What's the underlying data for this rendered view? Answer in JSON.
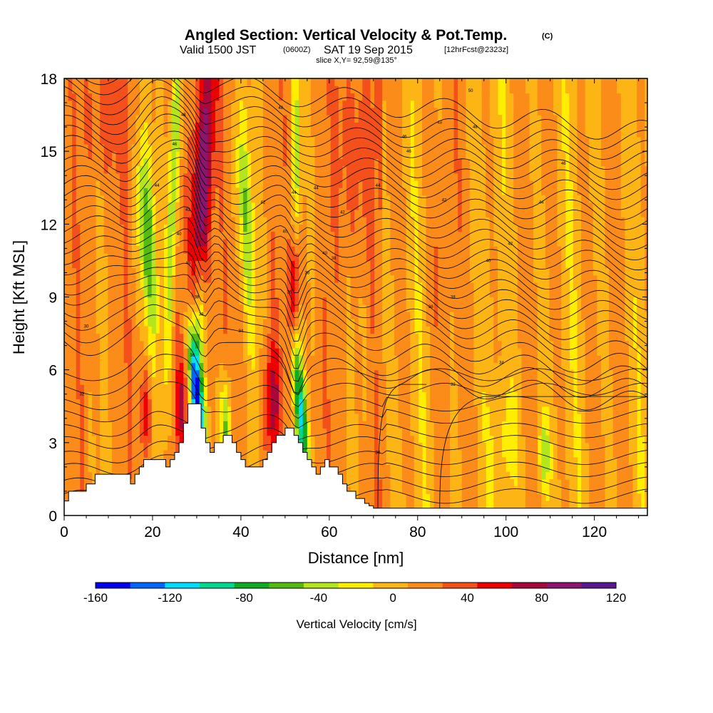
{
  "title": {
    "main": "Angled Section: Vertical Velocity & Pot.Temp.",
    "main_suffix": "(C)",
    "valid_prefix": "Valid 1500 JST",
    "valid_utc": "(0600Z)",
    "valid_date": "SAT 19 Sep 2015",
    "forecast": "[12hrFcst@2323z]",
    "slice": "slice X,Y= 92,59@135°"
  },
  "chart_data": {
    "type": "heatmap",
    "xlabel": "Distance [nm]",
    "ylabel": "Height [Kft MSL]",
    "xlim": [
      0,
      132
    ],
    "ylim": [
      0,
      18
    ],
    "x_ticks": [
      0,
      20,
      40,
      60,
      80,
      100,
      120
    ],
    "y_ticks": [
      0,
      3,
      6,
      9,
      12,
      15,
      18
    ],
    "colorbar": {
      "title": "Vertical Velocity [cm/s]",
      "tick_labels": [
        "-160",
        "-120",
        "-80",
        "-40",
        "0",
        "40",
        "80",
        "120"
      ],
      "tick_values": [
        -160,
        -120,
        -80,
        -40,
        0,
        40,
        80,
        120
      ],
      "range": [
        -160,
        120
      ],
      "colors": [
        "#0000ee",
        "#0066ff",
        "#00ddff",
        "#00d890",
        "#11aa22",
        "#55bb11",
        "#b5e61d",
        "#ffee00",
        "#fdb515",
        "#fb8c1a",
        "#f4501c",
        "#ee0000",
        "#a8083a",
        "#8a1670",
        "#5a1890"
      ]
    },
    "terrain_profile": {
      "x_nm": [
        0,
        1,
        2,
        5,
        6,
        7,
        9,
        10,
        15,
        16,
        17,
        18,
        19,
        20,
        22,
        23,
        24,
        25,
        26,
        27,
        28,
        29,
        30,
        31,
        32,
        33,
        34,
        35,
        36,
        37,
        38,
        39,
        40,
        41,
        42,
        43,
        44,
        45,
        46,
        47,
        48,
        49,
        50,
        51,
        52,
        53,
        54,
        55,
        56,
        57,
        58,
        59,
        60,
        62,
        63,
        64,
        65,
        66,
        67,
        68,
        69,
        70,
        71,
        72,
        132
      ],
      "height_kft": [
        0.6,
        1.0,
        1.0,
        1.3,
        1.3,
        1.7,
        1.7,
        1.7,
        1.3,
        1.7,
        2.0,
        2.3,
        2.3,
        2.3,
        2.3,
        2.0,
        2.3,
        2.6,
        3.0,
        3.8,
        4.6,
        4.6,
        4.6,
        3.6,
        3.0,
        2.6,
        3.0,
        3.0,
        3.3,
        3.3,
        3.0,
        2.6,
        2.3,
        2.0,
        2.0,
        2.0,
        2.0,
        2.3,
        2.6,
        3.0,
        3.3,
        3.3,
        3.6,
        3.6,
        3.3,
        3.0,
        2.6,
        2.3,
        2.0,
        1.7,
        2.0,
        2.3,
        2.0,
        1.7,
        1.3,
        1.0,
        1.0,
        0.7,
        0.7,
        0.5,
        0.4,
        0.3,
        0.3,
        0.3,
        0.3
      ]
    },
    "theta_contours": {
      "units": "C",
      "base_heights_kft": [
        0.8,
        1.3,
        1.9,
        2.4,
        3.0,
        3.5,
        4.1,
        4.6,
        5.2,
        5.8,
        6.4,
        6.9,
        7.4,
        7.9,
        8.4,
        8.8,
        9.2,
        9.6,
        10.0,
        10.4,
        10.8,
        11.2,
        11.6,
        12.0,
        12.4,
        12.8,
        13.2,
        13.6,
        14.0,
        14.4,
        14.8,
        15.2,
        15.6,
        16.0,
        16.4,
        16.8,
        17.2,
        17.6
      ]
    },
    "contour_labels": [
      "30",
      "32",
      "34",
      "36",
      "38",
      "40",
      "42",
      "44",
      "46",
      "48",
      "50"
    ]
  }
}
